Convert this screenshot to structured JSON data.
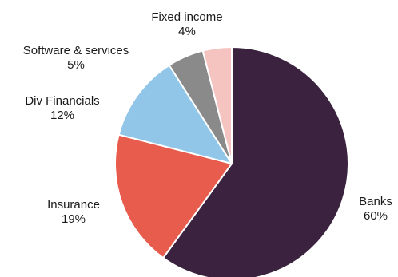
{
  "chart_data": {
    "type": "pie",
    "start_angle_deg": 0,
    "direction": "clockwise",
    "slices": [
      {
        "key": "banks",
        "label": "Banks",
        "value": 60,
        "value_label": "60%",
        "color": "#3b2340"
      },
      {
        "key": "insurance",
        "label": "Insurance",
        "value": 19,
        "value_label": "19%",
        "color": "#e85c4d"
      },
      {
        "key": "div_financials",
        "label": "Div Financials",
        "value": 12,
        "value_label": "12%",
        "color": "#92c6e8"
      },
      {
        "key": "software_services",
        "label": "Software & services",
        "value": 5,
        "value_label": "5%",
        "color": "#8a8a8a"
      },
      {
        "key": "fixed_income",
        "label": "Fixed income",
        "value": 4,
        "value_label": "4%",
        "color": "#f5c4c1"
      }
    ]
  }
}
